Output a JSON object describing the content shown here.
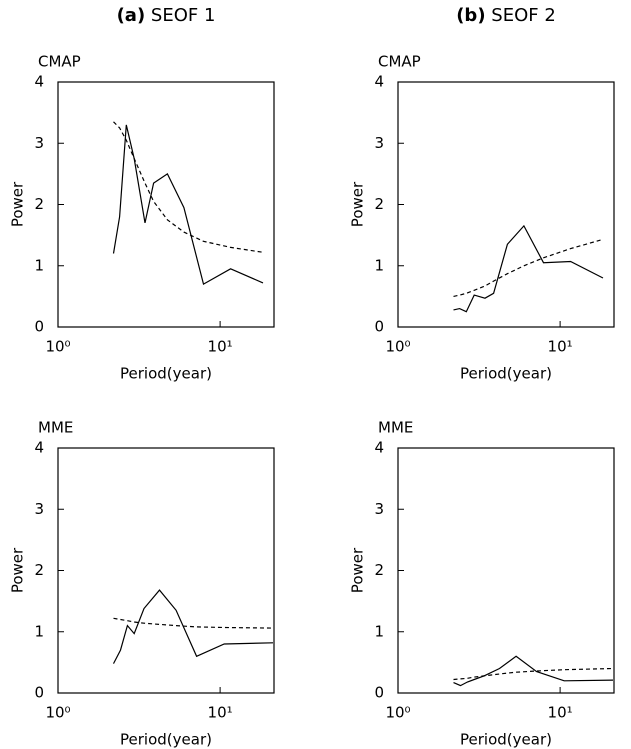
{
  "columns": [
    {
      "label": "(a)",
      "text": "SEOF 1"
    },
    {
      "label": "(b)",
      "text": "SEOF 2"
    }
  ],
  "chart_data": [
    {
      "type": "line",
      "title": "CMAP",
      "xlabel": "Period(year)",
      "ylabel": "Power",
      "log_x": true,
      "x": [
        2.2,
        2.4,
        2.64,
        2.95,
        3.44,
        3.89,
        4.73,
        5.98,
        7.9,
        11.6,
        18.4
      ],
      "series": [
        {
          "color": "#000000",
          "dash": false,
          "values": [
            1.2,
            1.8,
            3.3,
            2.75,
            1.7,
            2.35,
            2.5,
            1.95,
            0.7,
            0.95,
            0.72
          ]
        },
        {
          "color": "#000000",
          "dash": true,
          "values": [
            3.35,
            3.25,
            3.05,
            2.75,
            2.35,
            2.05,
            1.75,
            1.55,
            1.4,
            1.3,
            1.22
          ]
        }
      ],
      "xlim": [
        1,
        21.5
      ],
      "ylim": [
        0,
        4
      ],
      "xticks": [
        {
          "value": 1,
          "label": "10⁰"
        },
        {
          "value": 10,
          "label": "10¹"
        }
      ],
      "yticks": [
        0,
        1,
        2,
        3,
        4
      ]
    },
    {
      "type": "line",
      "title": "CMAP",
      "xlabel": "Period(year)",
      "ylabel": "Power",
      "log_x": true,
      "x": [
        2.2,
        2.4,
        2.64,
        2.95,
        3.44,
        3.89,
        4.73,
        5.98,
        7.9,
        11.6,
        18.4
      ],
      "series": [
        {
          "color": "#000000",
          "dash": false,
          "values": [
            0.28,
            0.3,
            0.25,
            0.52,
            0.47,
            0.55,
            1.35,
            1.65,
            1.05,
            1.07,
            0.8
          ]
        },
        {
          "color": "#000000",
          "dash": true,
          "values": [
            0.5,
            0.52,
            0.55,
            0.6,
            0.67,
            0.75,
            0.87,
            1.0,
            1.13,
            1.28,
            1.43
          ]
        }
      ],
      "xlim": [
        1,
        21.5
      ],
      "ylim": [
        0,
        4
      ],
      "xticks": [
        {
          "value": 1,
          "label": "10⁰"
        },
        {
          "value": 10,
          "label": "10¹"
        }
      ],
      "yticks": [
        0,
        1,
        2,
        3,
        4
      ]
    },
    {
      "type": "line",
      "title": "MME",
      "xlabel": "Period(year)",
      "ylabel": "Power",
      "log_x": true,
      "x": [
        2.2,
        2.43,
        2.68,
        2.95,
        3.39,
        4.23,
        5.35,
        7.16,
        10.6,
        21.2
      ],
      "series": [
        {
          "color": "#000000",
          "dash": false,
          "values": [
            0.48,
            0.7,
            1.1,
            0.97,
            1.38,
            1.68,
            1.35,
            0.6,
            0.8,
            0.82
          ]
        },
        {
          "color": "#000000",
          "dash": true,
          "values": [
            1.22,
            1.2,
            1.18,
            1.16,
            1.14,
            1.12,
            1.1,
            1.08,
            1.07,
            1.06
          ]
        }
      ],
      "xlim": [
        1,
        21.5
      ],
      "ylim": [
        0,
        4
      ],
      "xticks": [
        {
          "value": 1,
          "label": "10⁰"
        },
        {
          "value": 10,
          "label": "10¹"
        }
      ],
      "yticks": [
        0,
        1,
        2,
        3,
        4
      ]
    },
    {
      "type": "line",
      "title": "MME",
      "xlabel": "Period(year)",
      "ylabel": "Power",
      "log_x": true,
      "x": [
        2.2,
        2.43,
        2.68,
        2.95,
        3.39,
        4.23,
        5.35,
        7.16,
        10.6,
        21.2
      ],
      "series": [
        {
          "color": "#000000",
          "dash": false,
          "values": [
            0.17,
            0.12,
            0.18,
            0.22,
            0.28,
            0.4,
            0.6,
            0.35,
            0.2,
            0.21
          ]
        },
        {
          "color": "#000000",
          "dash": true,
          "values": [
            0.22,
            0.23,
            0.24,
            0.26,
            0.28,
            0.31,
            0.34,
            0.36,
            0.38,
            0.4
          ]
        }
      ],
      "xlim": [
        1,
        21.5
      ],
      "ylim": [
        0,
        4
      ],
      "xticks": [
        {
          "value": 1,
          "label": "10⁰"
        },
        {
          "value": 10,
          "label": "10¹"
        }
      ],
      "yticks": [
        0,
        1,
        2,
        3,
        4
      ]
    }
  ]
}
